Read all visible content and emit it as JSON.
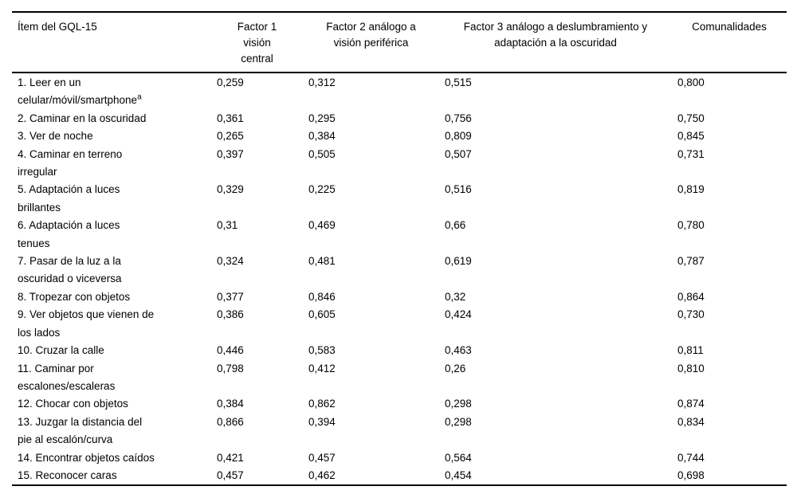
{
  "page": {
    "background": "#ffffff",
    "text_color": "#000000",
    "rule_color": "#000000"
  },
  "table": {
    "columns": [
      {
        "label": "Ítem del GQL-15",
        "align": "left"
      },
      {
        "label": "Factor 1\nvisión\ncentral",
        "align": "center"
      },
      {
        "label": "Factor 2 análogo a\nvisión periférica",
        "align": "center"
      },
      {
        "label": "Factor 3 análogo a deslumbramiento y\nadaptación a la oscuridad",
        "align": "center"
      },
      {
        "label": "Comunalidades",
        "align": "center"
      }
    ],
    "rows": [
      {
        "item": "1. Leer en un\ncelular/móvil/smartphone",
        "item_sup": "a",
        "f1": "0,259",
        "f2": "0,312",
        "f3": "0,515",
        "com": "0,800"
      },
      {
        "item": "2. Caminar en la oscuridad",
        "f1": "0,361",
        "f2": "0,295",
        "f3": "0,756",
        "com": "0,750"
      },
      {
        "item": "3. Ver de noche",
        "f1": "0,265",
        "f2": "0,384",
        "f3": "0,809",
        "com": "0,845"
      },
      {
        "item": "4. Caminar en terreno\nirregular",
        "f1": "0,397",
        "f2": "0,505",
        "f3": "0,507",
        "com": "0,731"
      },
      {
        "item": "5. Adaptación a luces\nbrillantes",
        "f1": "0,329",
        "f2": "0,225",
        "f3": "0,516",
        "com": "0,819"
      },
      {
        "item": "6. Adaptación a luces\ntenues",
        "f1": "0,31",
        "f2": "0,469",
        "f3": "0,66",
        "com": "0,780"
      },
      {
        "item": "7. Pasar de la luz a la\noscuridad o viceversa",
        "f1": "0,324",
        "f2": "0,481",
        "f3": "0,619",
        "com": "0,787"
      },
      {
        "item": "8. Tropezar con objetos",
        "f1": "0,377",
        "f2": "0,846",
        "f3": "0,32",
        "com": "0,864"
      },
      {
        "item": "9. Ver objetos que vienen de\nlos lados",
        "f1": "0,386",
        "f2": "0,605",
        "f3": "0,424",
        "com": "0,730"
      },
      {
        "item": "10. Cruzar la calle",
        "f1": "0,446",
        "f2": "0,583",
        "f3": "0,463",
        "com": "0,811"
      },
      {
        "item": "11. Caminar por\nescalones/escaleras",
        "f1": "0,798",
        "f2": "0,412",
        "f3": "0,26",
        "com": "0,810"
      },
      {
        "item": "12. Chocar con objetos",
        "f1": "0,384",
        "f2": "0,862",
        "f3": "0,298",
        "com": "0,874"
      },
      {
        "item": "13. Juzgar la distancia del\npie al escalón/curva",
        "f1": "0,866",
        "f2": "0,394",
        "f3": "0,298",
        "com": "0,834"
      },
      {
        "item": "14. Encontrar objetos caídos",
        "f1": "0,421",
        "f2": "0,457",
        "f3": "0,564",
        "com": "0,744"
      },
      {
        "item": "15. Reconocer caras",
        "f1": "0,457",
        "f2": "0,462",
        "f3": "0,454",
        "com": "0,698"
      }
    ]
  }
}
